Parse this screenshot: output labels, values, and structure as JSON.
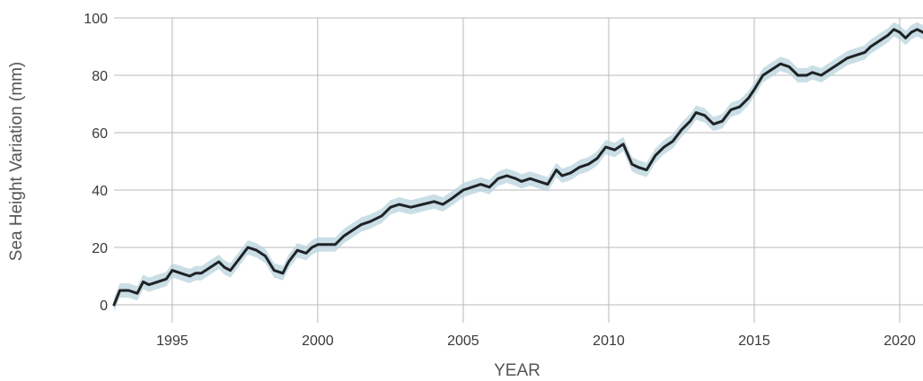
{
  "chart_data": {
    "type": "area",
    "title": "",
    "xlabel": "YEAR",
    "ylabel": "Sea Height Variation (mm)",
    "xlim": [
      1993.0,
      2020.8
    ],
    "ylim": [
      0,
      100
    ],
    "x_ticks": [
      1995,
      2000,
      2005,
      2010,
      2015,
      2020
    ],
    "x_tick_labels": [
      "1995",
      "2000",
      "2005",
      "2010",
      "2015",
      "2020"
    ],
    "y_ticks": [
      0,
      20,
      40,
      60,
      80,
      100
    ],
    "y_tick_labels": [
      "0",
      "20",
      "40",
      "60",
      "80",
      "100"
    ],
    "grid": true,
    "legend": "none",
    "colors": {
      "line": "#1f2326",
      "band": "#b8d3de",
      "grid": "#b9b9b9"
    },
    "series": [
      {
        "x": [
          1993.0,
          1993.2,
          1993.5,
          1993.8,
          1994.0,
          1994.2,
          1994.5,
          1994.8,
          1995.0,
          1995.3,
          1995.6,
          1995.8,
          1996.0,
          1996.3,
          1996.6,
          1996.8,
          1997.0,
          1997.3,
          1997.6,
          1997.9,
          1998.2,
          1998.5,
          1998.8,
          1999.0,
          1999.3,
          1999.6,
          1999.8,
          2000.0,
          2000.3,
          2000.6,
          2000.9,
          2001.2,
          2001.5,
          2001.8,
          2002.2,
          2002.5,
          2002.8,
          2003.2,
          2003.6,
          2004.0,
          2004.3,
          2004.6,
          2005.0,
          2005.3,
          2005.6,
          2005.9,
          2006.2,
          2006.5,
          2006.8,
          2007.0,
          2007.3,
          2007.6,
          2007.9,
          2008.2,
          2008.4,
          2008.7,
          2009.0,
          2009.3,
          2009.6,
          2009.9,
          2010.2,
          2010.5,
          2010.8,
          2011.0,
          2011.3,
          2011.6,
          2011.9,
          2012.2,
          2012.5,
          2012.8,
          2013.0,
          2013.3,
          2013.6,
          2013.9,
          2014.2,
          2014.5,
          2014.8,
          2015.0,
          2015.3,
          2015.6,
          2015.9,
          2016.2,
          2016.5,
          2016.8,
          2017.0,
          2017.3,
          2017.6,
          2017.9,
          2018.2,
          2018.5,
          2018.8,
          2019.0,
          2019.3,
          2019.6,
          2019.8,
          2020.0,
          2020.2,
          2020.4,
          2020.6,
          2020.8
        ],
        "y": [
          0,
          5,
          5,
          4,
          8,
          7,
          8,
          9,
          12,
          11,
          10,
          11,
          11,
          13,
          15,
          13,
          12,
          16,
          20,
          19,
          17,
          12,
          11,
          15,
          19,
          18,
          20,
          21,
          21,
          21,
          24,
          26,
          28,
          29,
          31,
          34,
          35,
          34,
          35,
          36,
          35,
          37,
          40,
          41,
          42,
          41,
          44,
          45,
          44,
          43,
          44,
          43,
          42,
          47,
          45,
          46,
          48,
          49,
          51,
          55,
          54,
          56,
          49,
          48,
          47,
          52,
          55,
          57,
          61,
          64,
          67,
          66,
          63,
          64,
          68,
          69,
          72,
          75,
          80,
          82,
          84,
          83,
          80,
          80,
          81,
          80,
          82,
          84,
          86,
          87,
          88,
          90,
          92,
          94,
          96,
          95,
          93,
          95,
          96,
          95
        ],
        "band_halfwidth": 2.5
      }
    ]
  }
}
